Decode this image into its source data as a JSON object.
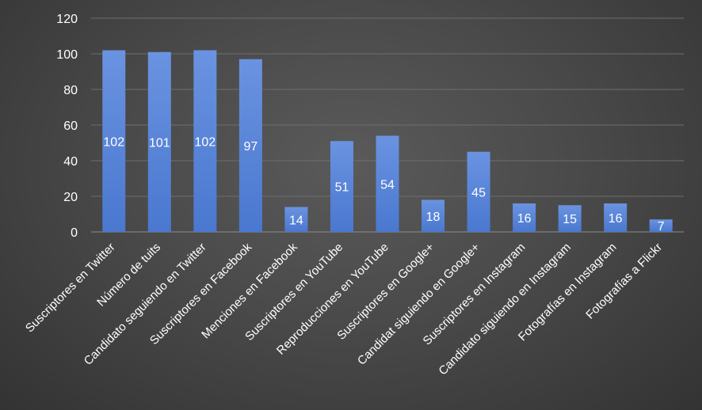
{
  "chart_data": {
    "type": "bar",
    "title": "",
    "xlabel": "",
    "ylabel": "",
    "ylim": [
      0,
      120
    ],
    "yticks": [
      0,
      20,
      40,
      60,
      80,
      100,
      120
    ],
    "grid": true,
    "legend": "none",
    "bar_color": "#4a78d0",
    "categories": [
      "Suscriptores en Twitter",
      "Número de tuits",
      "Candidato seguiendo en Twitter",
      "Suscriptores en Facebook",
      "Menciones en Facebook",
      "Suscriptores en YouTube",
      "Reproducciones en YouTube",
      "Suscriptores en Google+",
      "Candidat siguiendo en Google+",
      "Suscriptores en Instagram",
      "Candidato siguiendo en Instagram",
      "Fotografías en Instagram",
      "Fotografías a Flickr"
    ],
    "values": [
      102,
      101,
      102,
      97,
      14,
      51,
      54,
      18,
      45,
      16,
      15,
      16,
      7
    ]
  }
}
